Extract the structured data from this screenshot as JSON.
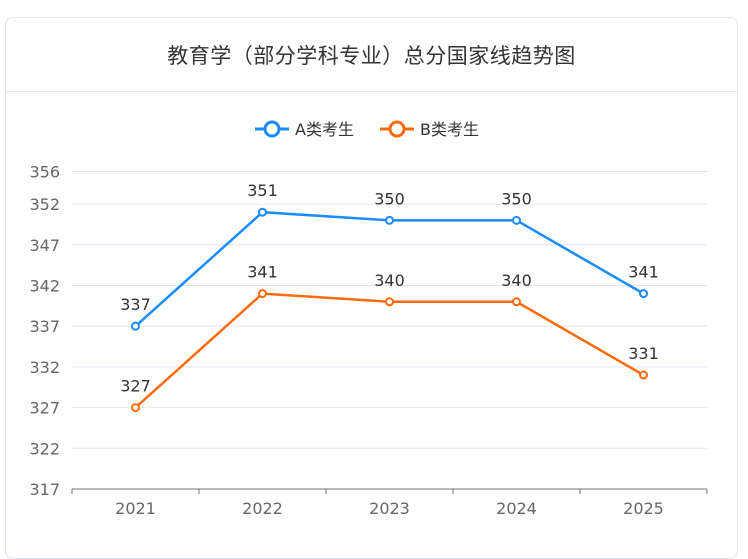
{
  "chart_data": {
    "type": "line",
    "title": "教育学（部分学科专业）总分国家线趋势图",
    "categories": [
      "2021",
      "2022",
      "2023",
      "2024",
      "2025"
    ],
    "series": [
      {
        "name": "A类考生",
        "values": [
          337,
          351,
          350,
          350,
          341
        ],
        "color": "#1a8cff"
      },
      {
        "name": "B类考生",
        "values": [
          327,
          341,
          340,
          340,
          331
        ],
        "color": "#ff6a0a"
      }
    ],
    "y_ticks": [
      317,
      322,
      327,
      332,
      337,
      342,
      347,
      352,
      356
    ],
    "ylim": [
      317,
      356
    ],
    "grid": true,
    "legend_position": "top-center",
    "data_labels": true
  }
}
